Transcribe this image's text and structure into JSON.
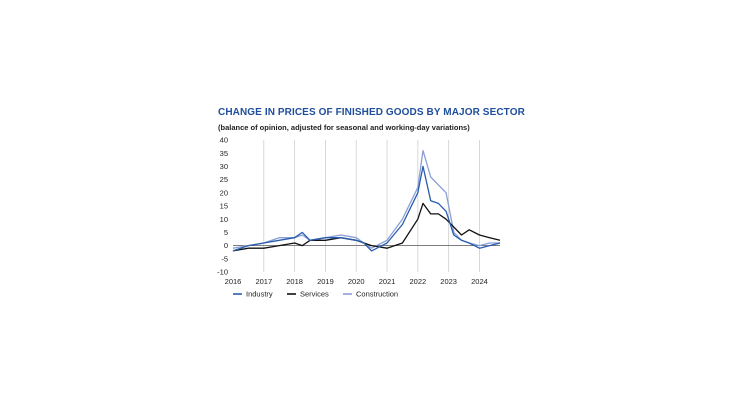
{
  "title": "CHANGE IN PRICES OF FINISHED GOODS BY MAJOR SECTOR",
  "subtitle": "(balance of opinion, adjusted for seasonal and working-day variations)",
  "colors": {
    "title": "#1f4e9c",
    "industry": "#2a5db0",
    "services": "#111111",
    "construction": "#8a9fd6",
    "grid": "#cfcfcf"
  },
  "chart_data": {
    "type": "line",
    "title": "CHANGE IN PRICES OF FINISHED GOODS BY MAJOR SECTOR",
    "subtitle": "(balance of opinion, adjusted for seasonal and working-day variations)",
    "xlabel": "",
    "ylabel": "",
    "ylim": [
      -10,
      40
    ],
    "yticks": [
      "-10",
      "-5",
      "0",
      "5",
      "10",
      "15",
      "20",
      "25",
      "30",
      "35",
      "40"
    ],
    "xlim": [
      "2016-01",
      "2024-09"
    ],
    "xticks": [
      "2016",
      "2017",
      "2018",
      "2019",
      "2020",
      "2021",
      "2022",
      "2023",
      "2024"
    ],
    "grid": "vertical",
    "legend": "bottom",
    "x": [
      "2016-01",
      "2016-07",
      "2017-01",
      "2017-07",
      "2018-01",
      "2018-04",
      "2018-07",
      "2019-01",
      "2019-07",
      "2020-01",
      "2020-04",
      "2020-07",
      "2021-01",
      "2021-07",
      "2022-01",
      "2022-03",
      "2022-06",
      "2022-09",
      "2022-12",
      "2023-03",
      "2023-06",
      "2023-09",
      "2024-01",
      "2024-05",
      "2024-09"
    ],
    "series": [
      {
        "name": "Industry",
        "values": [
          -2,
          0,
          1,
          2,
          3,
          5,
          2,
          3,
          3,
          2,
          1,
          -2,
          1,
          8,
          20,
          30,
          17,
          16,
          13,
          4,
          2,
          1,
          -1,
          0,
          1
        ]
      },
      {
        "name": "Services",
        "values": [
          -2,
          -1,
          -1,
          0,
          1,
          0,
          2,
          2,
          3,
          2,
          1,
          0,
          -1,
          1,
          10,
          16,
          12,
          12,
          10,
          7,
          4,
          6,
          4,
          3,
          2
        ]
      },
      {
        "name": "Construction",
        "values": [
          -1,
          0,
          1,
          3,
          3,
          4,
          2,
          3,
          4,
          3,
          1,
          -1,
          2,
          10,
          22,
          36,
          26,
          23,
          20,
          5,
          2,
          1,
          0,
          1,
          1
        ]
      }
    ]
  }
}
